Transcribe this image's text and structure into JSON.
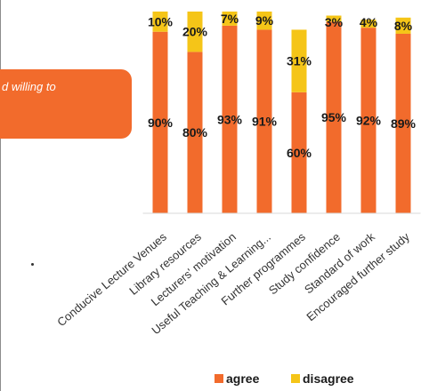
{
  "callout": {
    "text": "d willing to"
  },
  "chart_data": {
    "type": "bar",
    "stacked": true,
    "categories": [
      "Conducive Lecture Venues",
      "Library resources",
      "Lecturers' motivation",
      "Useful Teaching & Learning...",
      "Further programmes",
      "Study confidence",
      "Standard of work",
      "Encouraged further study"
    ],
    "series": [
      {
        "name": "agree",
        "color": "#f26b2c",
        "values": [
          90,
          80,
          93,
          91,
          60,
          95,
          92,
          89
        ]
      },
      {
        "name": "disagree",
        "color": "#f5c518",
        "values": [
          10,
          20,
          7,
          9,
          31,
          3,
          4,
          8
        ]
      }
    ],
    "data_labels": {
      "agree": [
        "90%",
        "80%",
        "93%",
        "91%",
        "60%",
        "95%",
        "92%",
        "89%"
      ],
      "disagree": [
        "10%",
        "20%",
        "7%",
        "9%",
        "31%",
        "3%",
        "4%",
        "8%"
      ]
    },
    "legend_position": "bottom",
    "ylim": [
      0,
      100
    ],
    "grid": false
  }
}
